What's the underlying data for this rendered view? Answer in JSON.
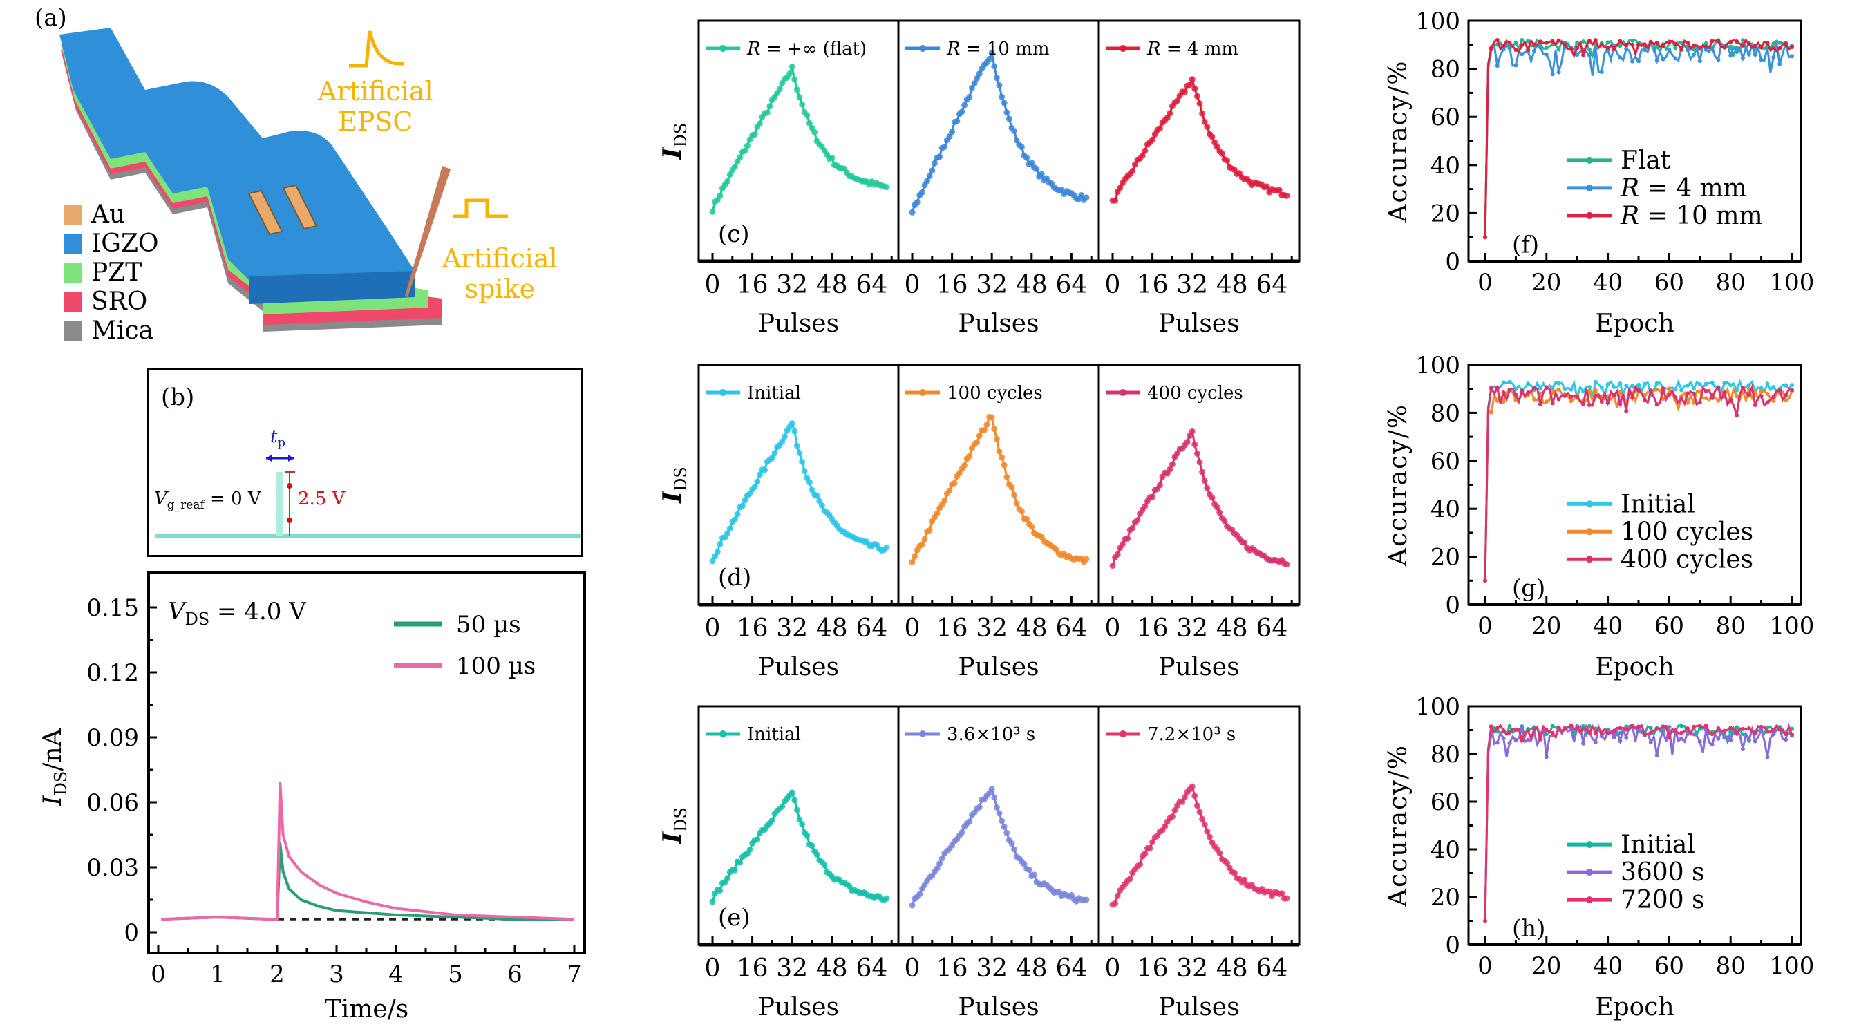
{
  "figure": {
    "panel_a": {
      "label": "(a)",
      "legend": [
        {
          "name": "Au",
          "color": "#e8a96a"
        },
        {
          "name": "IGZO",
          "color": "#2f8fd8"
        },
        {
          "name": "PZT",
          "color": "#7ee37a"
        },
        {
          "name": "SRO",
          "color": "#f0486a"
        },
        {
          "name": "Mica",
          "color": "#8a8a8a"
        }
      ],
      "annotation_epsc": [
        "Artificial",
        "EPSC"
      ],
      "annotation_spike": [
        "Artificial",
        "spike"
      ],
      "annotation_color": "#f4b400"
    },
    "panel_b": {
      "label": "(b)",
      "tp_label": "t",
      "tp_sub": "p",
      "vg_label": "V",
      "vg_sub": "g_reaf",
      "vg_value": " = 0 V",
      "amplitude_label": "2.5 V",
      "line_color": "#7fdcc8",
      "tp_color": "#1a1acc",
      "amp_color": "#d0101c"
    }
  },
  "chart_data": [
    {
      "id": "b2",
      "type": "line",
      "title": "",
      "annotation": {
        "main": "V",
        "sub": "DS",
        "rest": " = 4.0 V"
      },
      "xlabel": "Time/s",
      "ylabel": {
        "main": "I",
        "sub": "DS",
        "rest": "/nA"
      },
      "xlim": [
        -0.1,
        7.1
      ],
      "ylim": [
        -0.009,
        0.166
      ],
      "xticks": [
        0,
        1,
        2,
        3,
        4,
        5,
        6,
        7
      ],
      "yticks": [
        0,
        0.03,
        0.06,
        0.09,
        0.12,
        0.15
      ],
      "ytick_labels": [
        "0",
        "0.03",
        "0.06",
        "0.09",
        "0.12",
        "0.15"
      ],
      "legend_position": "top-right",
      "baseline": 0.006,
      "series": [
        {
          "name": "50 µs",
          "color": "#2a9d78",
          "x": [
            0.05,
            1.0,
            1.9,
            2.0,
            2.05,
            2.1,
            2.2,
            2.4,
            2.7,
            3.0,
            3.5,
            4.0,
            5.0,
            6.0,
            7.0
          ],
          "y": [
            0.006,
            0.007,
            0.006,
            0.006,
            0.041,
            0.028,
            0.02,
            0.015,
            0.012,
            0.01,
            0.009,
            0.008,
            0.007,
            0.006,
            0.006
          ]
        },
        {
          "name": "100 µs",
          "color": "#ea6aa6",
          "x": [
            0.05,
            1.0,
            1.9,
            2.0,
            2.05,
            2.1,
            2.2,
            2.4,
            2.7,
            3.0,
            3.5,
            4.0,
            5.0,
            6.0,
            7.0
          ],
          "y": [
            0.006,
            0.007,
            0.006,
            0.006,
            0.069,
            0.045,
            0.035,
            0.028,
            0.022,
            0.018,
            0.014,
            0.011,
            0.008,
            0.007,
            0.006
          ]
        }
      ]
    },
    {
      "id": "c",
      "type": "line",
      "panel_label": "(c)",
      "ylabel": {
        "main": "I",
        "sub": "DS"
      },
      "xlabel": "Pulses",
      "xticks": [
        0,
        16,
        32,
        48,
        64
      ],
      "xlim": [
        -8,
        72
      ],
      "ylim": [
        0,
        1
      ],
      "subplots": [
        {
          "name": "R = +∞ (flat)",
          "legend_parts": [
            "R",
            " = +∞ (flat)"
          ],
          "color": "#22c99a",
          "peak": 0.84,
          "start": 0.18,
          "end": 0.26
        },
        {
          "name": "R = 10 mm",
          "legend_parts": [
            "R",
            " = 10 mm"
          ],
          "color": "#3d86d8",
          "peak": 0.92,
          "start": 0.16,
          "end": 0.2
        },
        {
          "name": "R = 4 mm",
          "legend_parts": [
            "R",
            " = 4 mm"
          ],
          "color": "#e11d3c",
          "peak": 0.79,
          "start": 0.21,
          "end": 0.23
        }
      ]
    },
    {
      "id": "d",
      "type": "line",
      "panel_label": "(d)",
      "ylabel": {
        "main": "I",
        "sub": "DS"
      },
      "xlabel": "Pulses",
      "xticks": [
        0,
        16,
        32,
        48,
        64
      ],
      "xlim": [
        -8,
        72
      ],
      "ylim": [
        0,
        1
      ],
      "subplots": [
        {
          "name": "Initial",
          "legend_parts": [
            "",
            "Initial"
          ],
          "color": "#2cc6e6",
          "peak": 0.79,
          "start": 0.15,
          "end": 0.17
        },
        {
          "name": "100 cycles",
          "legend_parts": [
            "",
            "100 cycles"
          ],
          "color": "#f08a2a",
          "peak": 0.83,
          "start": 0.13,
          "end": 0.11
        },
        {
          "name": "400 cycles",
          "legend_parts": [
            "",
            "400 cycles"
          ],
          "color": "#d8336e",
          "peak": 0.75,
          "start": 0.13,
          "end": 0.11
        }
      ]
    },
    {
      "id": "e",
      "type": "line",
      "panel_label": "(e)",
      "ylabel": {
        "main": "I",
        "sub": "DS"
      },
      "xlabel": "Pulses",
      "xticks": [
        0,
        16,
        32,
        48,
        64
      ],
      "xlim": [
        -8,
        72
      ],
      "ylim": [
        0,
        1
      ],
      "subplots": [
        {
          "name": "Initial",
          "legend_parts": [
            "",
            "Initial"
          ],
          "color": "#18bfa8",
          "peak": 0.65,
          "start": 0.15,
          "end": 0.13
        },
        {
          "name": "3.6×10³ s",
          "legend_parts": [
            "",
            "3.6×10³ s"
          ],
          "color": "#7b86d8",
          "peak": 0.68,
          "start": 0.12,
          "end": 0.12
        },
        {
          "name": "7.2×10³ s",
          "legend_parts": [
            "",
            "7.2×10³ s"
          ],
          "color": "#e0356e",
          "peak": 0.69,
          "start": 0.12,
          "end": 0.14
        }
      ]
    },
    {
      "id": "f",
      "type": "line",
      "panel_label": "(f)",
      "xlabel": "Epoch",
      "ylabel": "Accuracy/%",
      "xlim": [
        -5,
        101
      ],
      "ylim": [
        0,
        100
      ],
      "xticks": [
        0,
        20,
        40,
        60,
        80,
        100
      ],
      "yticks": [
        0,
        20,
        40,
        60,
        80,
        100
      ],
      "legend_position": "center-right",
      "start_value": 10,
      "series": [
        {
          "name": "Flat",
          "legend_parts": [
            "",
            "Flat"
          ],
          "color": "#26b58c",
          "mean": 90,
          "spread": 2
        },
        {
          "name": "R = 4 mm",
          "legend_parts": [
            "R",
            " = 4 mm"
          ],
          "color": "#3a93d8",
          "mean": 87,
          "spread": 4
        },
        {
          "name": "R = 10 mm",
          "legend_parts": [
            "R",
            " = 10 mm"
          ],
          "color": "#e0203c",
          "mean": 90,
          "spread": 2
        }
      ]
    },
    {
      "id": "g",
      "type": "line",
      "panel_label": "(g)",
      "xlabel": "Epoch",
      "ylabel": "Accuracy/%",
      "xlim": [
        -5,
        101
      ],
      "ylim": [
        0,
        100
      ],
      "xticks": [
        0,
        20,
        40,
        60,
        80,
        100
      ],
      "yticks": [
        0,
        20,
        40,
        60,
        80,
        100
      ],
      "legend_position": "center-right",
      "start_value": 10,
      "series": [
        {
          "name": "Initial",
          "legend_parts": [
            "",
            "Initial"
          ],
          "color": "#2cc6e6",
          "mean": 91,
          "spread": 2
        },
        {
          "name": "100 cycles",
          "legend_parts": [
            "",
            "100 cycles"
          ],
          "color": "#f08a2a",
          "mean": 87,
          "spread": 3
        },
        {
          "name": "400 cycles",
          "legend_parts": [
            "",
            "400 cycles"
          ],
          "color": "#d8336e",
          "mean": 87,
          "spread": 4
        }
      ]
    },
    {
      "id": "h",
      "type": "line",
      "panel_label": "(h)",
      "xlabel": "Epoch",
      "ylabel": "Accuracy/%",
      "xlim": [
        -5,
        101
      ],
      "ylim": [
        0,
        100
      ],
      "xticks": [
        0,
        20,
        40,
        60,
        80,
        100
      ],
      "yticks": [
        0,
        20,
        40,
        60,
        80,
        100
      ],
      "legend_position": "center-right",
      "start_value": 10,
      "series": [
        {
          "name": "Initial",
          "legend_parts": [
            "",
            "Initial"
          ],
          "color": "#18b39c",
          "mean": 90,
          "spread": 2
        },
        {
          "name": "3600 s",
          "legend_parts": [
            "",
            "3600 s"
          ],
          "color": "#8a6ad8",
          "mean": 88,
          "spread": 4
        },
        {
          "name": "7200 s",
          "legend_parts": [
            "",
            "7200 s"
          ],
          "color": "#e8306e",
          "mean": 90,
          "spread": 2
        }
      ]
    }
  ]
}
